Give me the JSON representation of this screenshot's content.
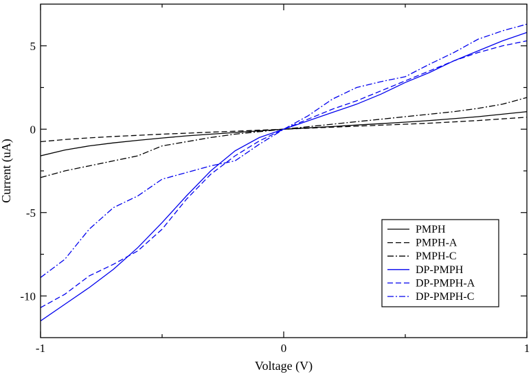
{
  "chart_data": {
    "type": "line",
    "title": "",
    "xlabel": "Voltage (V)",
    "ylabel": "Current (uA)",
    "xlim": [
      -1,
      1
    ],
    "ylim": [
      -12.5,
      7.5
    ],
    "x_ticks": [
      -1,
      0,
      1
    ],
    "x_tick_labels": [
      "-1",
      "0",
      "1"
    ],
    "y_ticks": [
      -10,
      -5,
      0,
      5
    ],
    "y_tick_labels": [
      "-10",
      "-5",
      "0",
      "5"
    ],
    "grid": false,
    "legend_position": "bottom-right",
    "series": [
      {
        "name": "PMPH",
        "color": "#000000",
        "dash": "solid",
        "x": [
          -1,
          -0.9,
          -0.8,
          -0.7,
          -0.6,
          -0.5,
          -0.4,
          -0.3,
          -0.2,
          -0.1,
          0,
          0.1,
          0.2,
          0.3,
          0.4,
          0.5,
          0.6,
          0.7,
          0.8,
          0.9,
          1
        ],
        "y": [
          -1.6,
          -1.25,
          -1.0,
          -0.82,
          -0.67,
          -0.53,
          -0.4,
          -0.3,
          -0.2,
          -0.1,
          0,
          0.08,
          0.16,
          0.25,
          0.33,
          0.42,
          0.52,
          0.63,
          0.75,
          0.9,
          1.05
        ]
      },
      {
        "name": "PMPH-A",
        "color": "#000000",
        "dash": "dash",
        "x": [
          -1,
          -0.9,
          -0.8,
          -0.7,
          -0.6,
          -0.5,
          -0.4,
          -0.3,
          -0.2,
          -0.1,
          0,
          0.1,
          0.2,
          0.3,
          0.4,
          0.5,
          0.6,
          0.7,
          0.8,
          0.9,
          1
        ],
        "y": [
          -0.75,
          -0.62,
          -0.52,
          -0.44,
          -0.37,
          -0.3,
          -0.24,
          -0.18,
          -0.12,
          -0.06,
          0,
          0.06,
          0.12,
          0.18,
          0.24,
          0.3,
          0.36,
          0.44,
          0.52,
          0.62,
          0.72
        ]
      },
      {
        "name": "PMPH-C",
        "color": "#000000",
        "dash": "dashdot",
        "x": [
          -1,
          -0.9,
          -0.8,
          -0.7,
          -0.6,
          -0.5,
          -0.4,
          -0.3,
          -0.2,
          -0.1,
          0,
          0.1,
          0.2,
          0.3,
          0.4,
          0.5,
          0.6,
          0.7,
          0.8,
          0.9,
          1
        ],
        "y": [
          -2.9,
          -2.5,
          -2.2,
          -1.9,
          -1.6,
          -1.0,
          -0.75,
          -0.5,
          -0.3,
          -0.15,
          0,
          0.15,
          0.3,
          0.45,
          0.6,
          0.75,
          0.9,
          1.05,
          1.25,
          1.5,
          1.9
        ]
      },
      {
        "name": "DP-PMPH",
        "color": "#0000ee",
        "dash": "solid",
        "x": [
          -1,
          -0.9,
          -0.8,
          -0.7,
          -0.6,
          -0.5,
          -0.4,
          -0.3,
          -0.2,
          -0.1,
          0,
          0.1,
          0.2,
          0.3,
          0.4,
          0.5,
          0.6,
          0.7,
          0.8,
          0.9,
          1
        ],
        "y": [
          -11.5,
          -10.5,
          -9.5,
          -8.4,
          -7.1,
          -5.6,
          -4.0,
          -2.5,
          -1.3,
          -0.5,
          0,
          0.5,
          1.0,
          1.5,
          2.1,
          2.8,
          3.4,
          4.1,
          4.7,
          5.3,
          5.8
        ]
      },
      {
        "name": "DP-PMPH-A",
        "color": "#0000ee",
        "dash": "dash",
        "x": [
          -1,
          -0.9,
          -0.8,
          -0.7,
          -0.6,
          -0.5,
          -0.4,
          -0.3,
          -0.2,
          -0.1,
          0,
          0.1,
          0.2,
          0.3,
          0.4,
          0.5,
          0.6,
          0.7,
          0.8,
          0.9,
          1
        ],
        "y": [
          -10.7,
          -9.9,
          -8.8,
          -8.1,
          -7.3,
          -6.0,
          -4.2,
          -2.7,
          -1.6,
          -0.7,
          0,
          0.6,
          1.2,
          1.7,
          2.3,
          2.9,
          3.5,
          4.1,
          4.6,
          5.0,
          5.3
        ]
      },
      {
        "name": "DP-PMPH-C",
        "color": "#0000ee",
        "dash": "dashdot",
        "x": [
          -1,
          -0.9,
          -0.8,
          -0.7,
          -0.6,
          -0.5,
          -0.4,
          -0.3,
          -0.2,
          -0.1,
          0,
          0.1,
          0.2,
          0.3,
          0.4,
          0.5,
          0.6,
          0.7,
          0.8,
          0.9,
          1
        ],
        "y": [
          -8.9,
          -7.8,
          -6.0,
          -4.7,
          -4.0,
          -3.0,
          -2.6,
          -2.2,
          -1.9,
          -0.9,
          0,
          0.8,
          1.8,
          2.5,
          2.85,
          3.15,
          3.9,
          4.6,
          5.4,
          5.9,
          6.3
        ]
      }
    ]
  }
}
